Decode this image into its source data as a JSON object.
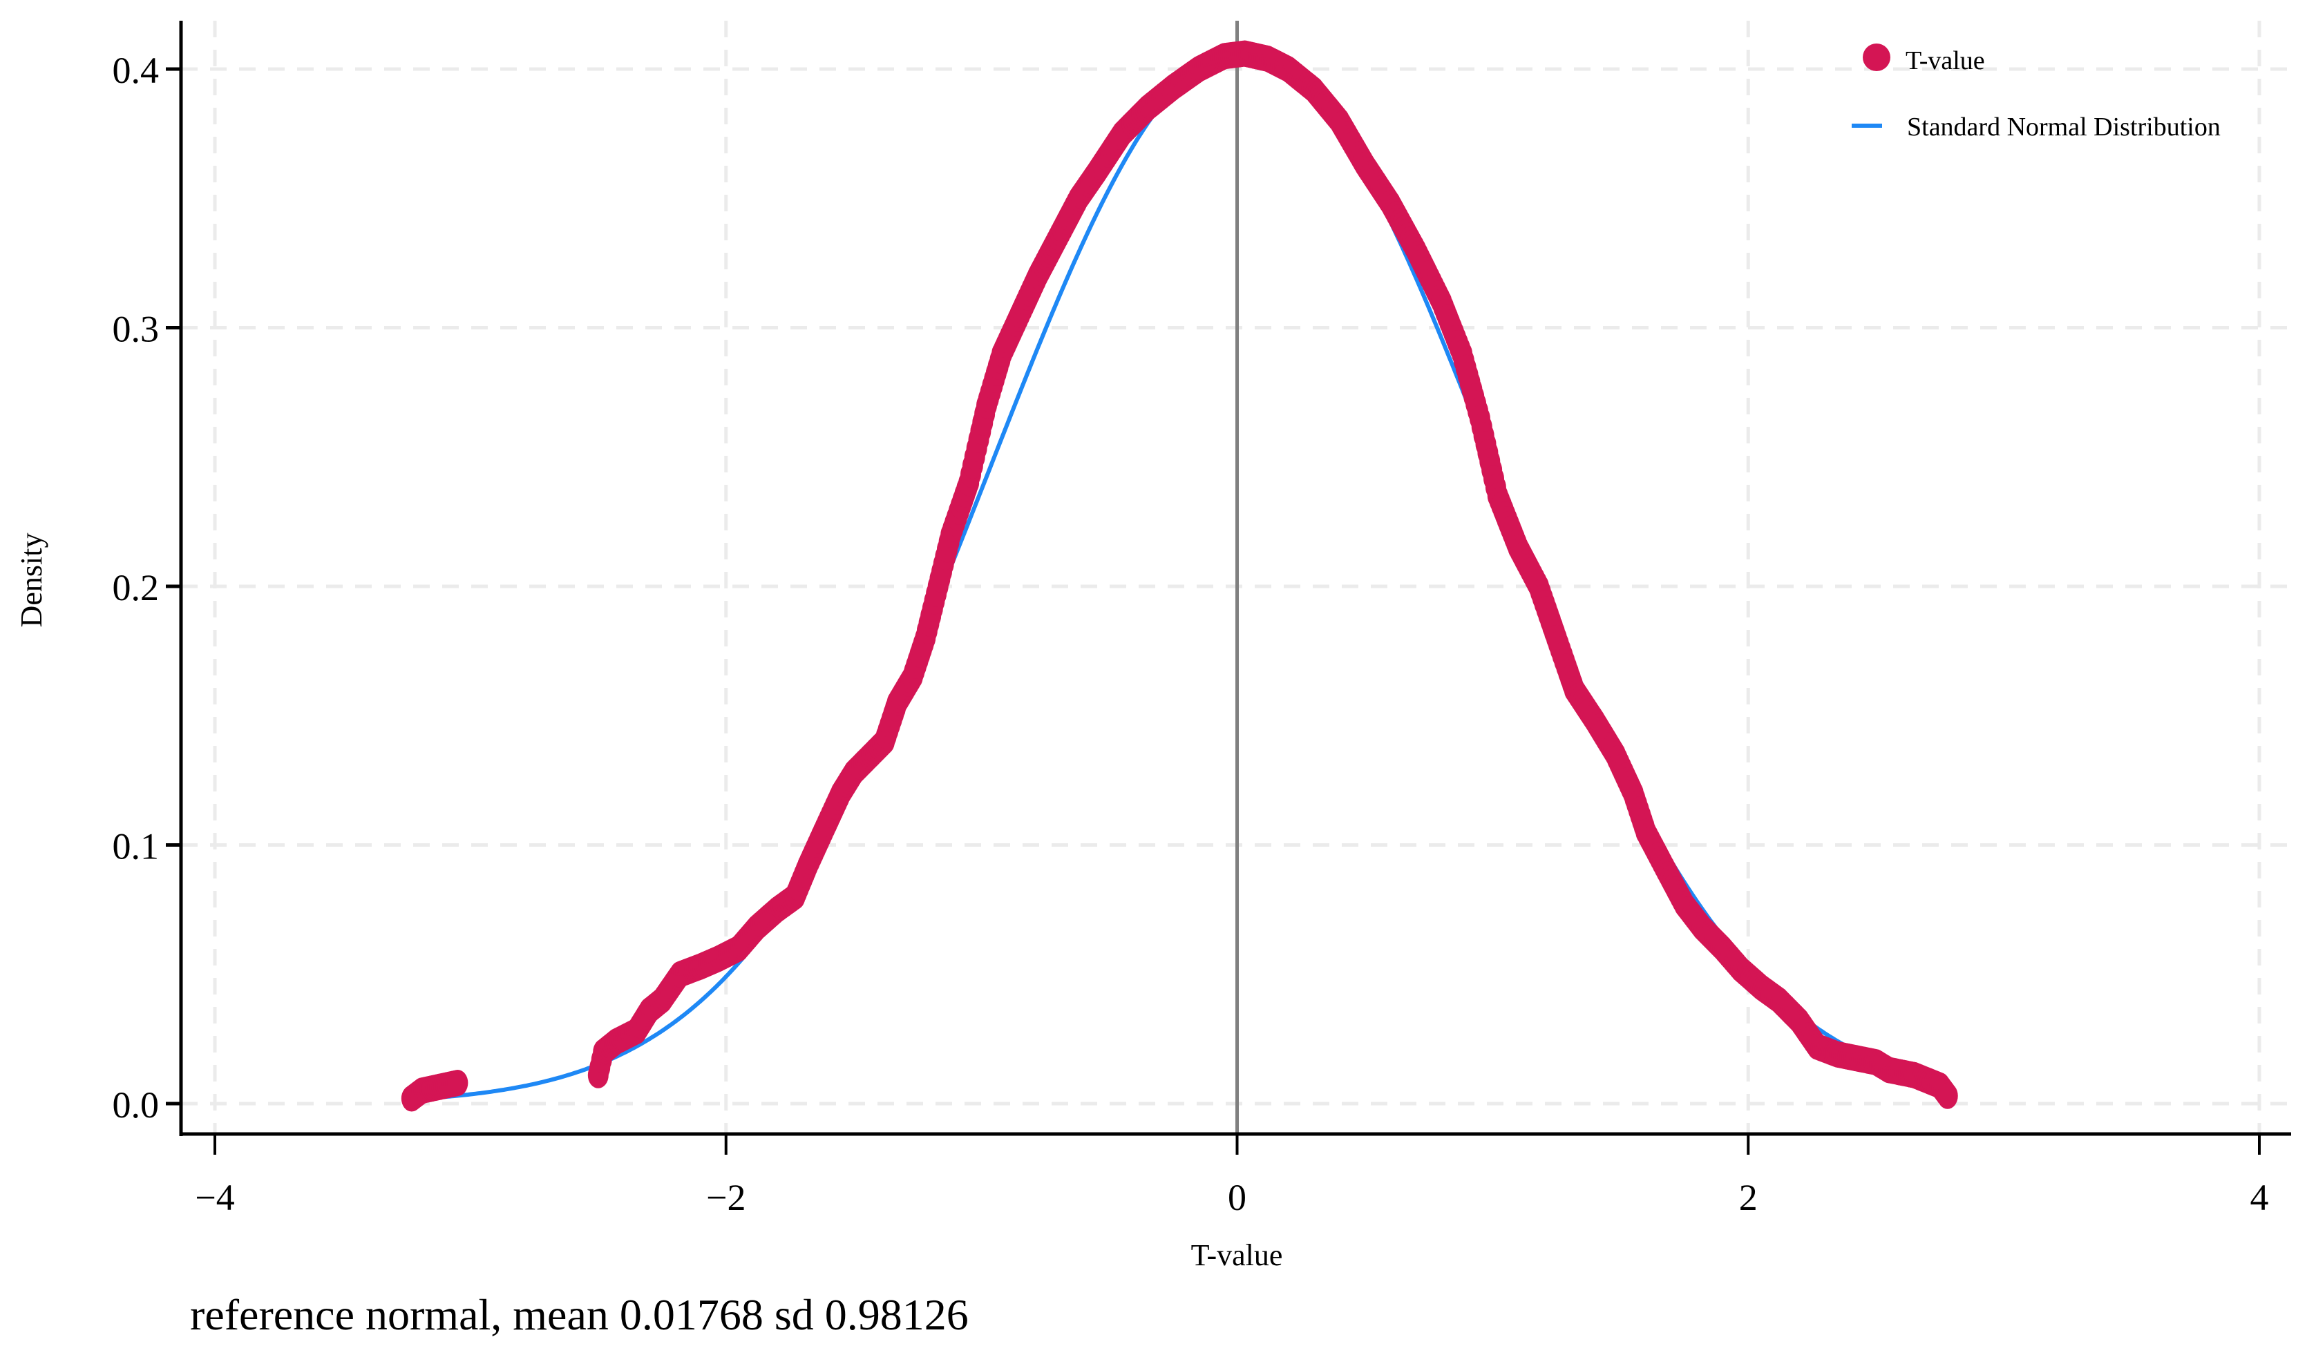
{
  "chart_data": {
    "type": "scatter",
    "xlabel": "T-value",
    "ylabel": "Density",
    "xlim": [
      -4,
      4
    ],
    "ylim": [
      0,
      0.4
    ],
    "xticks": [
      "−4",
      "−2",
      "0",
      "2",
      "4"
    ],
    "xtick_values": [
      -4,
      -2,
      0,
      2,
      4
    ],
    "yticks": [
      "0.0",
      "0.1",
      "0.2",
      "0.3",
      "0.4"
    ],
    "ytick_values": [
      0,
      0.1,
      0.2,
      0.3,
      0.4
    ],
    "grid": true,
    "legend_position": "top-right",
    "note": "reference normal, mean 0.01768 sd 0.98126",
    "reference_line_x": 0,
    "series": [
      {
        "name": "T-value",
        "kind": "markers",
        "color": "#D41554",
        "x": [
          -3.23,
          -3.19,
          -3.05,
          -2.5,
          -2.48,
          -2.43,
          -2.35,
          -2.3,
          -2.25,
          -2.18,
          -2.1,
          -2.03,
          -1.95,
          -1.88,
          -1.8,
          -1.73,
          -1.68,
          -1.62,
          -1.55,
          -1.5,
          -1.43,
          -1.38,
          -1.33,
          -1.27,
          -1.22,
          -1.17,
          -1.12,
          -1.05,
          -0.98,
          -0.92,
          -0.85,
          -0.78,
          -0.7,
          -0.62,
          -0.55,
          -0.45,
          -0.35,
          -0.25,
          -0.15,
          -0.05,
          0.03,
          0.12,
          0.2,
          0.3,
          0.4,
          0.5,
          0.6,
          0.7,
          0.8,
          0.88,
          0.95,
          1.02,
          1.1,
          1.18,
          1.25,
          1.32,
          1.4,
          1.48,
          1.55,
          1.6,
          1.68,
          1.75,
          1.82,
          1.9,
          1.97,
          2.05,
          2.12,
          2.2,
          2.27,
          2.35,
          2.5,
          2.55,
          2.65,
          2.75,
          2.78
        ],
        "y": [
          0.002,
          0.005,
          0.008,
          0.011,
          0.02,
          0.024,
          0.028,
          0.036,
          0.04,
          0.05,
          0.053,
          0.056,
          0.06,
          0.068,
          0.075,
          0.08,
          0.092,
          0.105,
          0.12,
          0.128,
          0.135,
          0.14,
          0.155,
          0.165,
          0.18,
          0.2,
          0.22,
          0.24,
          0.27,
          0.29,
          0.305,
          0.32,
          0.335,
          0.35,
          0.36,
          0.375,
          0.385,
          0.393,
          0.4,
          0.405,
          0.406,
          0.404,
          0.4,
          0.392,
          0.38,
          0.363,
          0.348,
          0.33,
          0.31,
          0.29,
          0.265,
          0.235,
          0.215,
          0.2,
          0.18,
          0.16,
          0.148,
          0.135,
          0.12,
          0.105,
          0.09,
          0.077,
          0.068,
          0.06,
          0.052,
          0.045,
          0.04,
          0.032,
          0.022,
          0.019,
          0.016,
          0.013,
          0.011,
          0.007,
          0.003
        ]
      },
      {
        "name": "Standard Normal Distribution",
        "kind": "line",
        "color": "#1E88F5",
        "mean": 0.01768,
        "sd": 0.98126,
        "x_range": [
          -3.2,
          2.7
        ]
      }
    ]
  }
}
